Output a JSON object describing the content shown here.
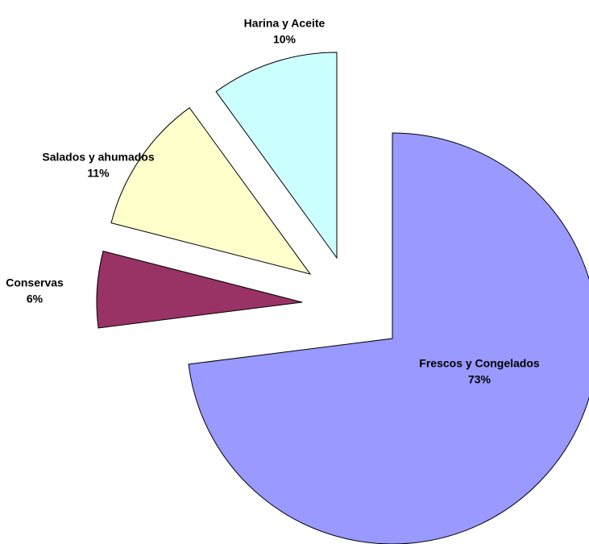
{
  "chart_data": {
    "type": "pie",
    "categories": [
      "Frescos y Congelados",
      "Conservas",
      "Salados y ahumados",
      "Harina y Aceite"
    ],
    "values": [
      73,
      6,
      11,
      10
    ],
    "value_labels": [
      "73%",
      "6%",
      "11%",
      "10%"
    ],
    "colors": [
      "#9999ff",
      "#993366",
      "#ffffcc",
      "#ccffff"
    ],
    "start_angle": 0,
    "direction": "clockwise",
    "exploded": true
  }
}
